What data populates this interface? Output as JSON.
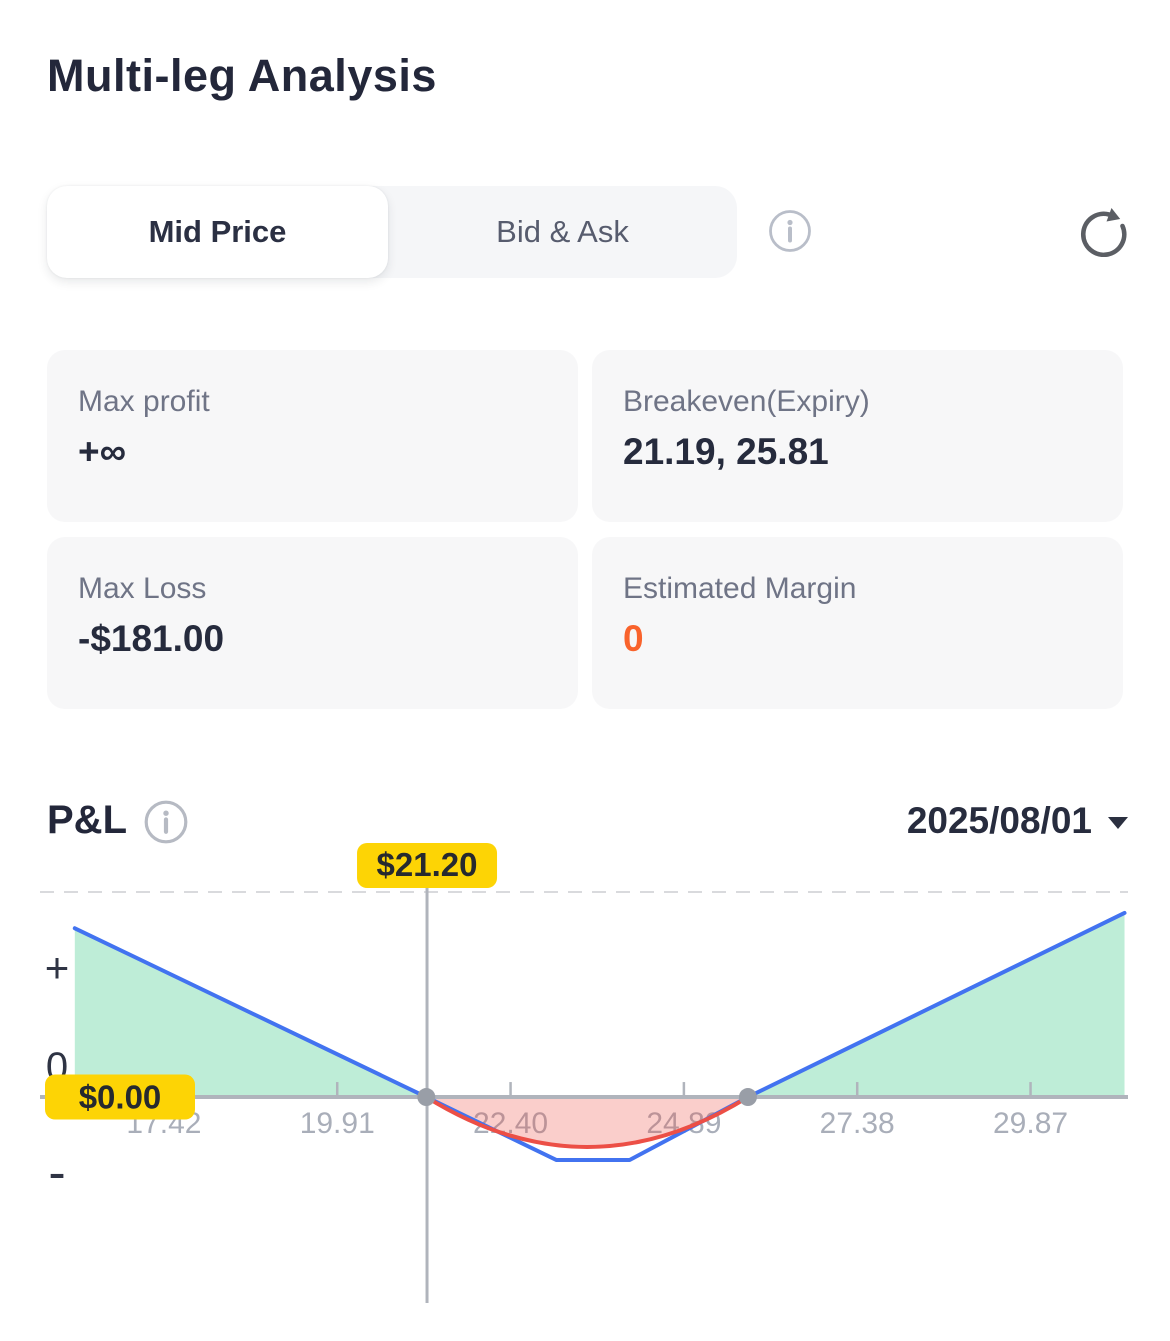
{
  "header": {
    "title": "Multi-leg Analysis"
  },
  "tabs": {
    "items": [
      {
        "label": "Mid Price",
        "active": true
      },
      {
        "label": "Bid & Ask",
        "active": false
      }
    ]
  },
  "stats": {
    "cards": [
      {
        "label": "Max profit",
        "value": "+∞"
      },
      {
        "label": "Breakeven(Expiry)",
        "value": "21.19, 25.81"
      },
      {
        "label": "Max Loss",
        "value": "-$181.00"
      },
      {
        "label": "Estimated Margin",
        "value": "0",
        "value_color": "#f9632c"
      }
    ]
  },
  "pnl_section": {
    "title": "P&L",
    "date": "2025/08/01"
  },
  "icons": {
    "tab_info": "circle-info",
    "refresh": "circular-arrow",
    "pnl_info": "circle-info",
    "date_caret": "triangle-down"
  },
  "chart_data": {
    "type": "line",
    "title": "P&L",
    "x_range": [
      15.64,
      31.27
    ],
    "y_range": [
      -701,
      753
    ],
    "x_ticks": [
      17.42,
      19.91,
      22.4,
      24.89,
      27.38,
      29.87
    ],
    "x_tick_labels": [
      "17.42",
      "19.91",
      "22.40",
      "24.89",
      "27.38",
      "29.87"
    ],
    "y_axis_labels": [
      {
        "label": "+",
        "value": 373
      },
      {
        "label": "0",
        "value": 89
      },
      {
        "label": "-",
        "value": -215
      }
    ],
    "current_price": 21.2,
    "current_price_label": "$21.20",
    "zero_line_label": "$0.00",
    "breakevens": [
      21.19,
      25.81
    ],
    "max_loss_value": -181,
    "series": [
      {
        "name": "expiry_pnl",
        "shape": "polyline",
        "color": "#4273f0",
        "points": [
          [
            16.14,
            485
          ],
          [
            21.19,
            0
          ],
          [
            23.06,
            -181
          ],
          [
            24.11,
            -181
          ],
          [
            25.81,
            0
          ],
          [
            31.22,
            529
          ]
        ]
      },
      {
        "name": "current_pnl",
        "shape": "quadratic",
        "color": "#ec4f46",
        "points": [
          [
            21.19,
            0
          ],
          [
            23.5,
            -287
          ],
          [
            25.81,
            0
          ]
        ]
      }
    ],
    "fills": [
      {
        "name": "profit-area-left",
        "shape": "polygon",
        "color": "rgba(52,199,131,0.32)",
        "points": [
          [
            16.14,
            485
          ],
          [
            21.19,
            0
          ],
          [
            16.14,
            0
          ]
        ]
      },
      {
        "name": "profit-area-right",
        "shape": "polygon",
        "color": "rgba(52,199,131,0.32)",
        "points": [
          [
            25.81,
            0
          ],
          [
            31.22,
            529
          ],
          [
            31.22,
            0
          ]
        ]
      },
      {
        "name": "loss-area",
        "shape": "quadratic",
        "color": "rgba(236,79,70,0.28)",
        "points": [
          [
            21.19,
            0
          ],
          [
            23.5,
            -287
          ],
          [
            25.81,
            0
          ]
        ]
      }
    ],
    "colors": {
      "axis": "#b0b4bc",
      "tick_label": "#a9aeb9",
      "y_label": "#2f3444",
      "marker": "#999ea7",
      "dashed_guide": "#d9dadd",
      "badge_bg": "#fdd405",
      "badge_text": "#26292f"
    },
    "legend": null,
    "grid": false
  }
}
